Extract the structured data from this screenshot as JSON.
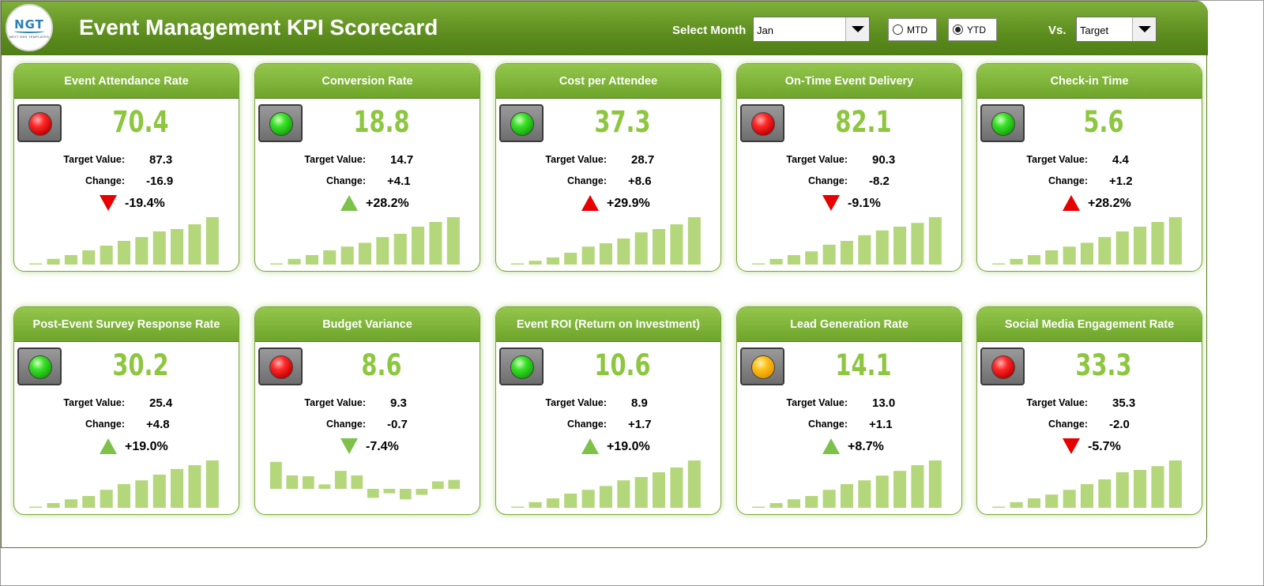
{
  "header": {
    "title": "Event Management KPI Scorecard",
    "logo_text": "NGT",
    "logo_sub": "NEXT GEN TEMPLATES",
    "select_month_label": "Select Month",
    "month_value": "Jan",
    "mtd_label": "MTD",
    "ytd_label": "YTD",
    "selected_period": "YTD",
    "vs_label": "Vs.",
    "vs_value": "Target"
  },
  "colors": {
    "header_green": "#5c8d1e",
    "value_green": "#8dc63f",
    "bar_green": "#b5d77c",
    "up_green": "#7ec14a",
    "down_red": "#e60000"
  },
  "labels": {
    "target": "Target Value:",
    "change": "Change:"
  },
  "cards": [
    {
      "title": "Event Attendance Rate",
      "value": "70.4",
      "target": "87.3",
      "change": "-16.9",
      "pct": "-19.4%",
      "status": "red",
      "arrow": "down-red",
      "spark": [
        0.02,
        0.12,
        0.2,
        0.3,
        0.4,
        0.5,
        0.58,
        0.7,
        0.75,
        0.85,
        1.0
      ]
    },
    {
      "title": "Conversion Rate",
      "value": "18.8",
      "target": "14.7",
      "change": "+4.1",
      "pct": "+28.2%",
      "status": "green",
      "arrow": "up-green",
      "spark": [
        0.02,
        0.12,
        0.2,
        0.3,
        0.38,
        0.46,
        0.58,
        0.65,
        0.8,
        0.9,
        1.0
      ]
    },
    {
      "title": "Cost per Attendee",
      "value": "37.3",
      "target": "28.7",
      "change": "+8.6",
      "pct": "+29.9%",
      "status": "green",
      "arrow": "up-red",
      "spark": [
        0.02,
        0.08,
        0.15,
        0.25,
        0.38,
        0.45,
        0.55,
        0.68,
        0.75,
        0.85,
        1.0
      ]
    },
    {
      "title": "On-Time Event Delivery",
      "value": "82.1",
      "target": "90.3",
      "change": "-8.2",
      "pct": "-9.1%",
      "status": "red",
      "arrow": "down-red",
      "spark": [
        0.02,
        0.12,
        0.2,
        0.28,
        0.42,
        0.5,
        0.62,
        0.72,
        0.8,
        0.88,
        1.0
      ]
    },
    {
      "title": "Check-in Time",
      "value": "5.6",
      "target": "4.4",
      "change": "+1.2",
      "pct": "+28.2%",
      "status": "green",
      "arrow": "up-red",
      "spark": [
        0.02,
        0.12,
        0.2,
        0.3,
        0.38,
        0.46,
        0.58,
        0.7,
        0.8,
        0.9,
        1.0
      ]
    },
    {
      "title": "Post-Event Survey Response Rate",
      "value": "30.2",
      "target": "25.4",
      "change": "+4.8",
      "pct": "+19.0%",
      "status": "green",
      "arrow": "up-green",
      "spark": [
        0.02,
        0.1,
        0.18,
        0.25,
        0.38,
        0.5,
        0.58,
        0.7,
        0.82,
        0.9,
        1.0
      ]
    },
    {
      "title": "Budget Variance",
      "value": "8.6",
      "target": "9.3",
      "change": "-0.7",
      "pct": "-7.4%",
      "status": "red",
      "arrow": "down-green",
      "spark": [
        0.9,
        0.45,
        0.42,
        0.15,
        0.6,
        0.45,
        -0.3,
        -0.15,
        -0.35,
        -0.2,
        0.25,
        0.3
      ]
    },
    {
      "title": "Event ROI (Return on Investment)",
      "value": "10.6",
      "target": "8.9",
      "change": "+1.7",
      "pct": "+19.0%",
      "status": "green",
      "arrow": "up-green",
      "spark": [
        0.02,
        0.12,
        0.2,
        0.3,
        0.38,
        0.46,
        0.58,
        0.65,
        0.75,
        0.85,
        1.0
      ]
    },
    {
      "title": "Lead Generation Rate",
      "value": "14.1",
      "target": "13.0",
      "change": "+1.1",
      "pct": "+8.7%",
      "status": "amber",
      "arrow": "up-green",
      "spark": [
        0.02,
        0.1,
        0.18,
        0.25,
        0.38,
        0.5,
        0.58,
        0.68,
        0.78,
        0.9,
        1.0
      ]
    },
    {
      "title": "Social Media Engagement Rate",
      "value": "33.3",
      "target": "35.3",
      "change": "-2.0",
      "pct": "-5.7%",
      "status": "red",
      "arrow": "down-red",
      "spark": [
        0.02,
        0.12,
        0.2,
        0.28,
        0.38,
        0.5,
        0.6,
        0.75,
        0.8,
        0.88,
        1.0
      ]
    }
  ]
}
